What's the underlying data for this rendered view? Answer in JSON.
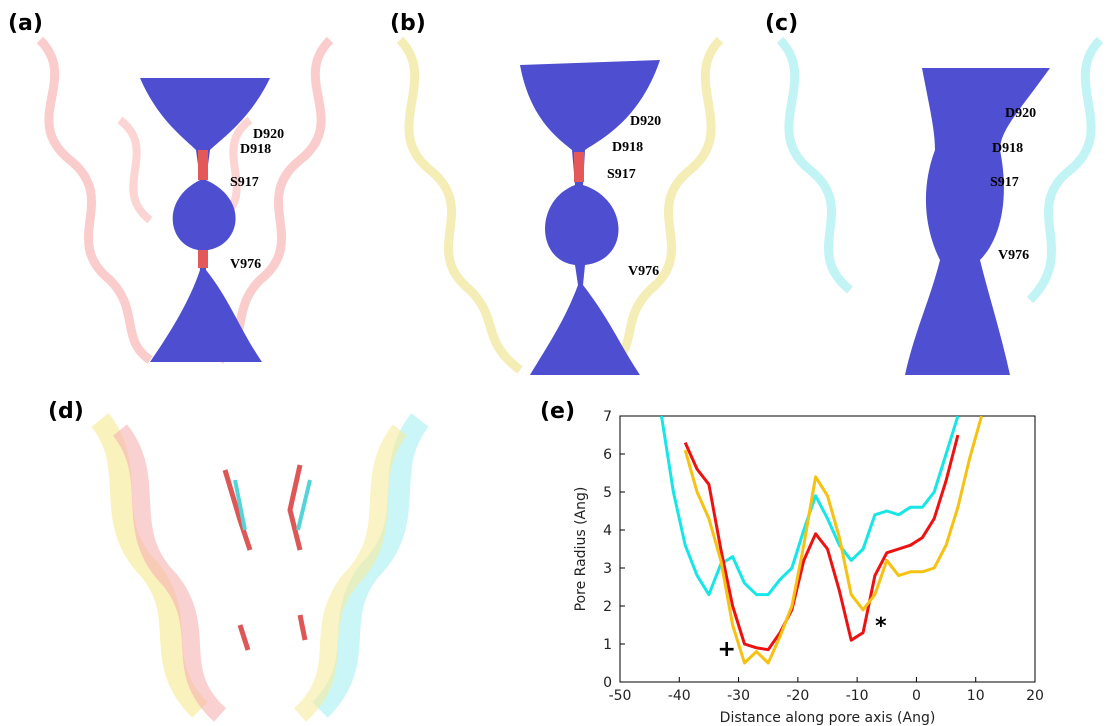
{
  "panels": [
    {
      "label": "(a)",
      "residues": [
        "D920",
        "D918",
        "S917",
        "V976"
      ]
    },
    {
      "label": "(b)",
      "residues": [
        "D920",
        "D918",
        "S917",
        "V976"
      ]
    },
    {
      "label": "(c)",
      "residues": [
        "D920",
        "D918",
        "S917",
        "V976"
      ]
    },
    {
      "label": "(d)"
    }
  ],
  "chart_data": {
    "type": "line",
    "label": "(e)",
    "x_label": "Distance along pore axis (Ang)",
    "y_label": "Pore Radius (Ang)",
    "x": [
      -43,
      -41,
      -39,
      -37,
      -35,
      -33,
      -31,
      -29,
      -27,
      -25,
      -23,
      -21,
      -19,
      -17,
      -15,
      -13,
      -11,
      -9,
      -7,
      -5,
      -3,
      -1,
      1,
      3,
      5,
      7,
      9,
      11
    ],
    "series": [
      {
        "color": "#17e6e6",
        "values": [
          7,
          5.0,
          3.6,
          2.8,
          2.3,
          3.1,
          3.3,
          2.6,
          2.3,
          2.3,
          2.7,
          3.0,
          4.0,
          4.9,
          4.3,
          3.6,
          3.2,
          3.5,
          4.4,
          4.5,
          4.4,
          4.6,
          4.6,
          5.0,
          6.0,
          7,
          null,
          null
        ]
      },
      {
        "color": "#ee1111",
        "values": [
          null,
          null,
          6.3,
          5.6,
          5.2,
          3.5,
          2.0,
          1.0,
          0.9,
          0.85,
          1.3,
          1.9,
          3.2,
          3.9,
          3.5,
          2.4,
          1.1,
          1.3,
          2.8,
          3.4,
          3.5,
          3.6,
          3.8,
          4.3,
          5.3,
          6.5,
          null,
          null
        ]
      },
      {
        "color": "#f5c211",
        "values": [
          null,
          null,
          6.1,
          5.0,
          4.3,
          3.2,
          1.5,
          0.5,
          0.8,
          0.5,
          1.2,
          2.0,
          3.6,
          5.4,
          4.9,
          3.8,
          2.3,
          1.9,
          2.3,
          3.2,
          2.8,
          2.9,
          2.9,
          3.0,
          3.6,
          4.6,
          5.9,
          7.0
        ]
      }
    ],
    "annotations": [
      {
        "text": "+",
        "x": -32,
        "y": 0.9
      },
      {
        "text": "*",
        "x": -6,
        "y": 1.5
      }
    ],
    "xlim": [
      -50,
      20
    ],
    "xticks": [
      -50,
      -40,
      -30,
      -20,
      -10,
      0,
      10,
      20
    ],
    "ylim": [
      0,
      7
    ],
    "yticks": [
      0,
      1,
      2,
      3,
      4,
      5,
      6,
      7
    ],
    "grid": false
  }
}
